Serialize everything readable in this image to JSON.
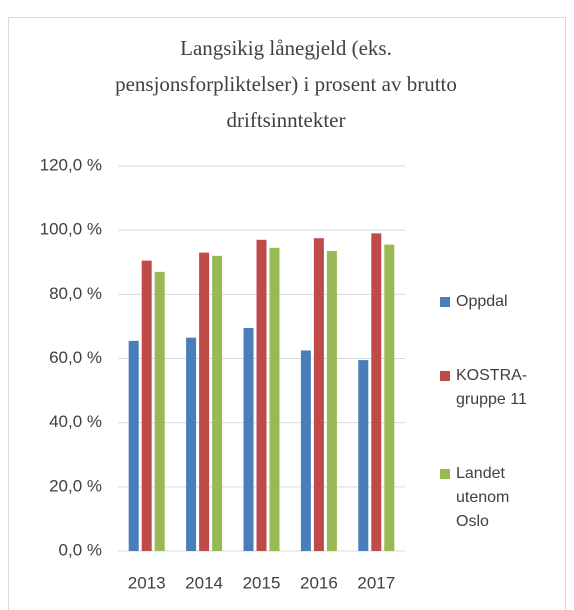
{
  "chart_data": {
    "type": "bar",
    "title": [
      "Langsikig lånegjeld (eks.",
      "pensjonsforpliktelser) i prosent av brutto",
      "driftsinntekter"
    ],
    "categories": [
      "2013",
      "2014",
      "2015",
      "2016",
      "2017"
    ],
    "series": [
      {
        "name": "Oppdal",
        "color": "#4a7ebb",
        "values": [
          65.5,
          66.5,
          69.5,
          62.5,
          59.5
        ]
      },
      {
        "name": "KOSTRA-gruppe 11",
        "color": "#be4b48",
        "values": [
          90.5,
          93,
          97,
          97.5,
          99
        ]
      },
      {
        "name": "Landet utenom Oslo",
        "color": "#98b954",
        "values": [
          87,
          92,
          94.5,
          93.5,
          95.5
        ]
      }
    ],
    "ylim": [
      0,
      120
    ],
    "yticks": [
      {
        "value": 0,
        "label": "0,0 %"
      },
      {
        "value": 20,
        "label": "20,0 %"
      },
      {
        "value": 40,
        "label": "40,0 %"
      },
      {
        "value": 60,
        "label": "60,0 %"
      },
      {
        "value": 80,
        "label": "80,0 %"
      },
      {
        "value": 100,
        "label": "100,0 %"
      },
      {
        "value": 120,
        "label": "120,0 %"
      }
    ],
    "grid": true,
    "legend": "right"
  }
}
